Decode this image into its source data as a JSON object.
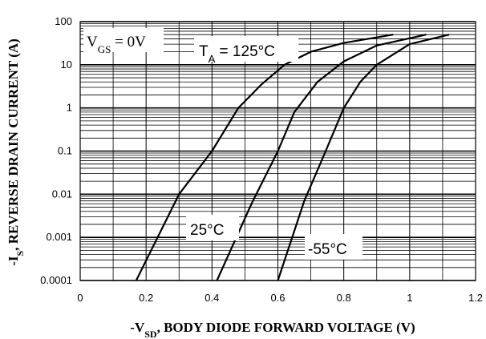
{
  "chart_data": {
    "type": "line",
    "xlabel": {
      "text": "-V",
      "sub": "SD",
      "after": ",  BODY DIODE FORWARD VOLTAGE (V)"
    },
    "ylabel": {
      "text": "-I",
      "sub": "S",
      "after": ", REVERSE DRAIN CURRENT (A)"
    },
    "xlim": [
      0,
      1.2
    ],
    "xticks": [
      0,
      0.2,
      0.4,
      0.6,
      0.8,
      1,
      1.2
    ],
    "ylim": [
      0.0001,
      100
    ],
    "yticks": [
      0.0001,
      0.001,
      0.01,
      0.1,
      1,
      10,
      100
    ],
    "log_y": true,
    "grid": true,
    "minor_grid": true,
    "series": [
      {
        "color": "#000000",
        "x": [
          0.17,
          0.3,
          0.4,
          0.48,
          0.55,
          0.62,
          0.7,
          0.8,
          0.95
        ],
        "values": [
          0.0001,
          0.01,
          0.1,
          1,
          3.5,
          10,
          20,
          32,
          50
        ]
      },
      {
        "color": "#000000",
        "x": [
          0.415,
          0.52,
          0.6,
          0.65,
          0.72,
          0.8,
          0.9,
          1.05
        ],
        "values": [
          0.0001,
          0.006,
          0.1,
          0.8,
          4,
          12,
          28,
          50
        ]
      },
      {
        "color": "#000000",
        "x": [
          0.6,
          0.68,
          0.745,
          0.8,
          0.85,
          0.9,
          1.0,
          1.12
        ],
        "values": [
          0.0001,
          0.007,
          0.1,
          1,
          4,
          10,
          30,
          50
        ]
      }
    ],
    "annotations": [
      {
        "text": "V",
        "sub": "GS",
        "after": " = 0V"
      },
      {
        "text": "T",
        "sub": "A",
        "after": " = 125°C"
      },
      {
        "text": "25°C"
      },
      {
        "text": "-55°C"
      }
    ]
  }
}
